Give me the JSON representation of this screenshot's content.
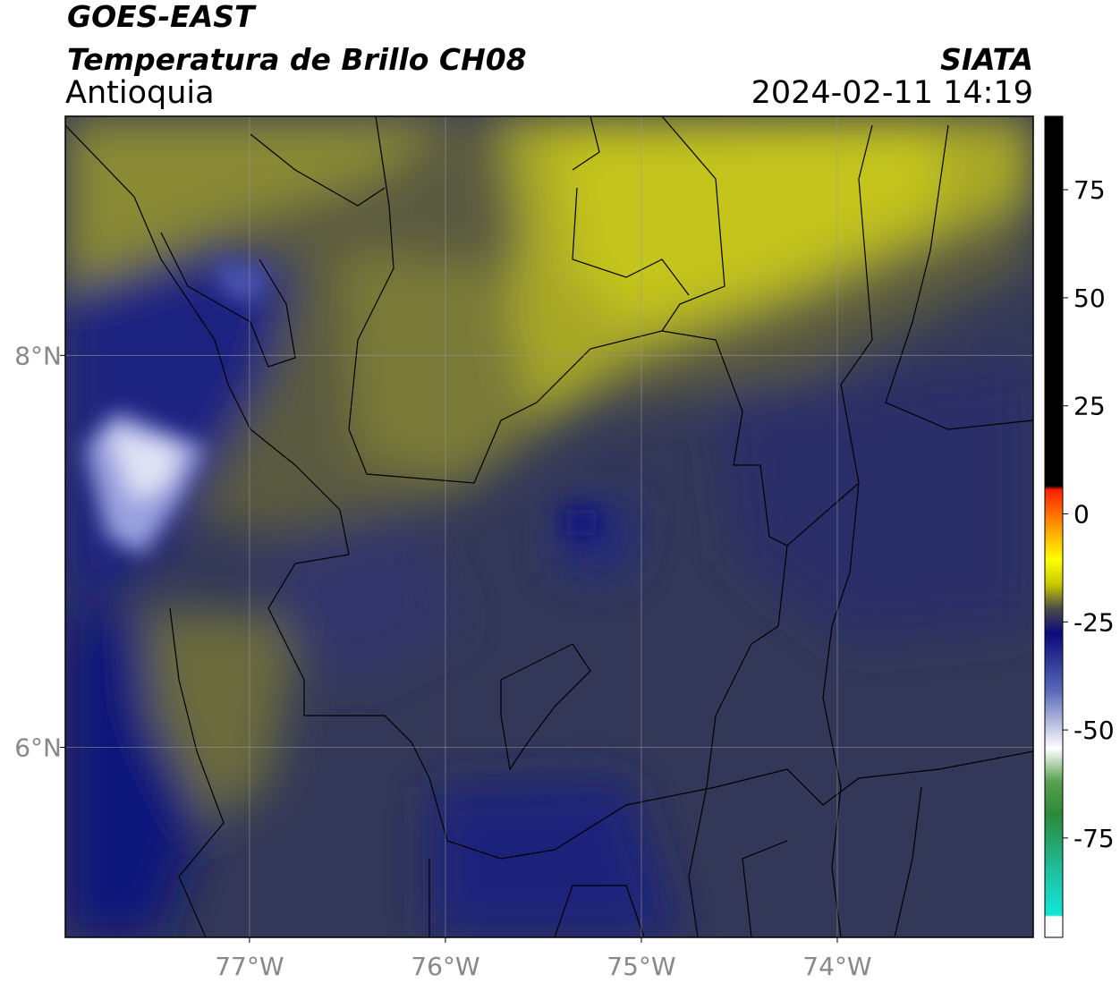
{
  "header": {
    "satellite": "GOES-EAST",
    "product": "Temperatura de Brillo CH08",
    "region": "Antioquia",
    "agency": "SIATA",
    "datetime": "2024-02-11 14:19"
  },
  "map": {
    "xlim": [
      -77.94,
      -73
    ],
    "ylim": [
      5.03,
      9.22
    ],
    "xticks": [
      {
        "value": -77,
        "label": "77°W"
      },
      {
        "value": -76,
        "label": "76°W"
      },
      {
        "value": -75,
        "label": "75°W"
      },
      {
        "value": -74,
        "label": "74°W"
      }
    ],
    "yticks": [
      {
        "value": 6,
        "label": "6°N"
      },
      {
        "value": 8,
        "label": "8°N"
      }
    ],
    "grid": true
  },
  "colorbar": {
    "lim": [
      -98,
      92
    ],
    "ticks": [
      75,
      50,
      25,
      0,
      -25,
      -50,
      -75
    ]
  }
}
